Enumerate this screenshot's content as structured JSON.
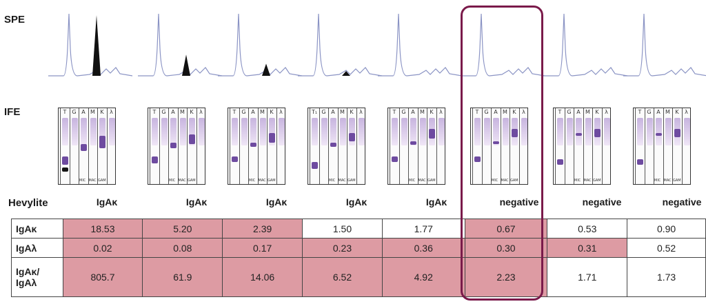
{
  "labels": {
    "spe": "SPE",
    "ife": "IFE",
    "hevylite": "Hevylite"
  },
  "strip": {
    "lanes": [
      "T",
      "G",
      "A",
      "M",
      "K",
      "λ"
    ],
    "footers": [
      "MIC",
      "MAC",
      "GAM"
    ],
    "first_lane_alt": "T₁"
  },
  "samples": [
    {
      "heading": "IgAκ",
      "kappa": "18.53",
      "lambda": "0.02",
      "ratio": "805.7",
      "hl": [
        true,
        true,
        true
      ],
      "peak": 1.0
    },
    {
      "heading": "IgAκ",
      "kappa": "5.20",
      "lambda": "0.08",
      "ratio": "61.9",
      "hl": [
        true,
        true,
        true
      ],
      "peak": 0.35
    },
    {
      "heading": "IgAκ",
      "kappa": "2.39",
      "lambda": "0.17",
      "ratio": "14.06",
      "hl": [
        true,
        true,
        true
      ],
      "peak": 0.2
    },
    {
      "heading": "IgAκ",
      "kappa": "1.50",
      "lambda": "0.23",
      "ratio": "6.52",
      "hl": [
        false,
        true,
        true
      ],
      "peak": 0.08
    },
    {
      "heading": "IgAκ",
      "kappa": "1.77",
      "lambda": "0.36",
      "ratio": "4.92",
      "hl": [
        false,
        true,
        true
      ],
      "peak": 0
    },
    {
      "heading": "negative",
      "kappa": "0.67",
      "lambda": "0.30",
      "ratio": "2.23",
      "hl": [
        true,
        true,
        true
      ],
      "peak": 0
    },
    {
      "heading": "negative",
      "kappa": "0.53",
      "lambda": "0.31",
      "ratio": "1.71",
      "hl": [
        false,
        true,
        false
      ],
      "peak": 0
    },
    {
      "heading": "negative",
      "kappa": "0.90",
      "lambda": "0.52",
      "ratio": "1.73",
      "hl": [
        false,
        false,
        false
      ],
      "peak": 0
    }
  ],
  "table_labels": {
    "kappa": "IgAκ",
    "lambda": "IgAλ",
    "ratio_line1": "IgAκ/",
    "ratio_line2": "IgAλ"
  },
  "colors": {
    "highlight_cell": "#dd9ba3",
    "box_outline": "#7a1a4a",
    "trace": "#8a93c4",
    "band": "#6e4ba0"
  }
}
